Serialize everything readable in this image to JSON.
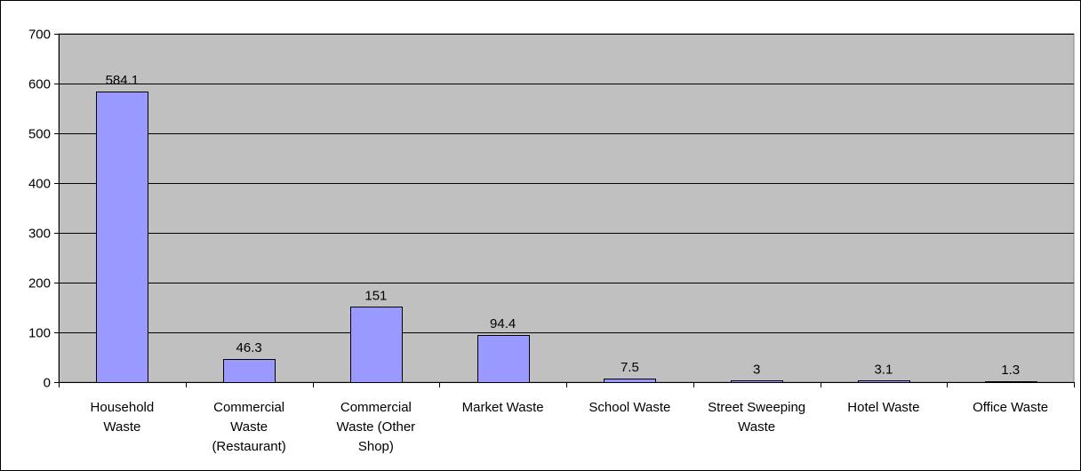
{
  "chart_data": {
    "type": "bar",
    "title": "",
    "xlabel": "",
    "ylabel": "",
    "categories": [
      "Household Waste",
      "Commercial Waste (Restaurant)",
      "Commercial Waste (Other Shop)",
      "Market Waste",
      "School Waste",
      "Street Sweeping Waste",
      "Hotel Waste",
      "Office Waste"
    ],
    "category_lines": [
      [
        "Household",
        "Waste"
      ],
      [
        "Commercial",
        "Waste",
        "(Restaurant)"
      ],
      [
        "Commercial",
        "Waste (Other",
        "Shop)"
      ],
      [
        "Market Waste"
      ],
      [
        "School Waste"
      ],
      [
        "Street Sweeping",
        "Waste"
      ],
      [
        "Hotel Waste"
      ],
      [
        "Office Waste"
      ]
    ],
    "values": [
      584.1,
      46.3,
      151,
      94.4,
      7.5,
      3,
      3.1,
      1.3
    ],
    "data_labels": [
      "584.1",
      "46.3",
      "151",
      "94.4",
      "7.5",
      "3",
      "3.1",
      "1.3"
    ],
    "ylim": [
      0,
      700
    ],
    "yticks": [
      0,
      100,
      200,
      300,
      400,
      500,
      600,
      700
    ],
    "grid": true,
    "legend": "none",
    "colors": {
      "bar_fill": "#9999ff",
      "plot_background": "#c0c0c0",
      "gridline": "#000000"
    }
  }
}
